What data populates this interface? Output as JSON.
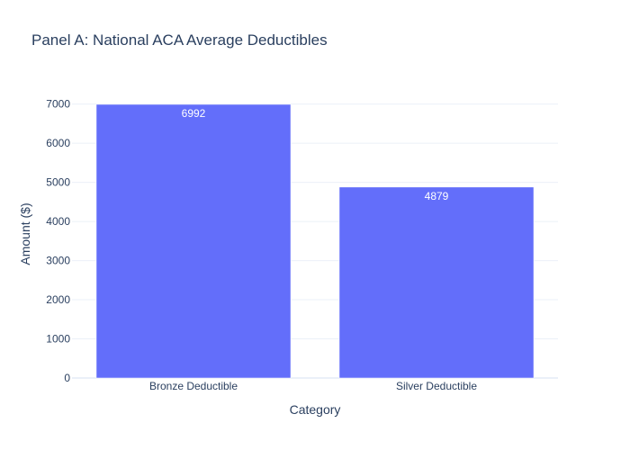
{
  "chart_data": {
    "type": "bar",
    "title": "Panel A: National ACA Average Deductibles",
    "xlabel": "Category",
    "ylabel": "Amount ($)",
    "categories": [
      "Bronze Deductible",
      "Silver Deductible"
    ],
    "values": [
      6992,
      4879
    ],
    "data_labels": [
      "6992",
      "4879"
    ],
    "ylim": [
      0,
      7360
    ],
    "yticks": [
      0,
      1000,
      2000,
      3000,
      4000,
      5000,
      6000,
      7000
    ],
    "grid": true,
    "bar_color": "#636efa",
    "text_color": "#2a3f5f",
    "grid_color": "#ebf0f8"
  }
}
